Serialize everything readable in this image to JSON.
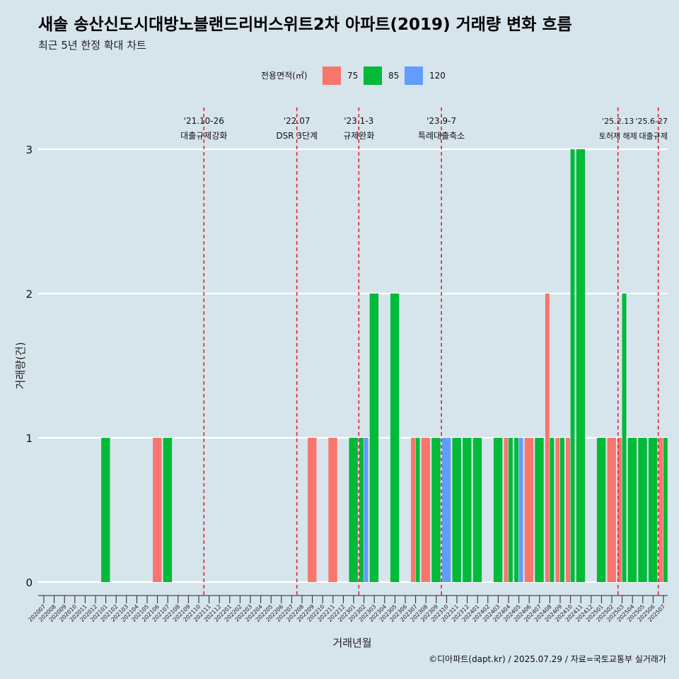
{
  "chart_data": {
    "type": "bar",
    "title": "새솔 송산신도시대방노블랜드리버스위트2차 아파트(2019) 거래량 변화 흐름",
    "subtitle": "최근 5년 한정 확대 차트",
    "xlabel": "거래년월",
    "ylabel": "거래량(건)",
    "ylim": [
      0,
      3
    ],
    "yticks": [
      "0",
      "1",
      "2",
      "3"
    ],
    "grid": true,
    "legend": {
      "title": "전용면적(㎡)",
      "position": "top",
      "entries": [
        {
          "name": "75",
          "color": "#f8766d"
        },
        {
          "name": "85",
          "color": "#00ba38"
        },
        {
          "name": "120",
          "color": "#619cff"
        }
      ]
    },
    "categories": [
      "202007",
      "202008",
      "202009",
      "202010",
      "202011",
      "202012",
      "202101",
      "202102",
      "202103",
      "202104",
      "202105",
      "202106",
      "202107",
      "202108",
      "202109",
      "202110",
      "202111",
      "202112",
      "202201",
      "202202",
      "202203",
      "202204",
      "202205",
      "202206",
      "202207",
      "202208",
      "202209",
      "202210",
      "202211",
      "202212",
      "202301",
      "202302",
      "202303",
      "202304",
      "202305",
      "202306",
      "202307",
      "202308",
      "202309",
      "202310",
      "202311",
      "202312",
      "202401",
      "202402",
      "202403",
      "202404",
      "202405",
      "202406",
      "202407",
      "202408",
      "202409",
      "202410",
      "202411",
      "202412",
      "202501",
      "202502",
      "202503",
      "202504",
      "202505",
      "202506",
      "202507"
    ],
    "series": [
      {
        "name": "75",
        "color": "#f8766d",
        "values": [
          0,
          0,
          0,
          0,
          0,
          0,
          0,
          0,
          0,
          0,
          0,
          1,
          0,
          0,
          0,
          0,
          0,
          0,
          0,
          0,
          0,
          0,
          0,
          0,
          0,
          0,
          1,
          0,
          1,
          0,
          0,
          0,
          0,
          0,
          0,
          0,
          1,
          1,
          0,
          0,
          0,
          0,
          0,
          0,
          0,
          1,
          0,
          1,
          0,
          2,
          1,
          1,
          0,
          0,
          0,
          1,
          1,
          0,
          0,
          0,
          1
        ]
      },
      {
        "name": "85",
        "color": "#00ba38",
        "values": [
          0,
          0,
          0,
          0,
          0,
          0,
          1,
          0,
          0,
          0,
          0,
          0,
          1,
          0,
          0,
          0,
          0,
          0,
          0,
          0,
          0,
          0,
          0,
          0,
          0,
          0,
          0,
          0,
          0,
          0,
          1,
          1,
          2,
          0,
          2,
          0,
          1,
          0,
          1,
          0,
          1,
          1,
          1,
          0,
          1,
          1,
          1,
          0,
          1,
          1,
          1,
          3,
          3,
          0,
          1,
          0,
          2,
          1,
          1,
          1,
          1
        ]
      },
      {
        "name": "120",
        "color": "#619cff",
        "values": [
          0,
          0,
          0,
          0,
          0,
          0,
          0,
          0,
          0,
          0,
          0,
          0,
          0,
          0,
          0,
          0,
          0,
          0,
          0,
          0,
          0,
          0,
          0,
          0,
          0,
          0,
          0,
          0,
          0,
          0,
          0,
          1,
          0,
          0,
          0,
          0,
          0,
          0,
          0,
          1,
          0,
          0,
          0,
          0,
          0,
          0,
          1,
          0,
          0,
          0,
          0,
          0,
          0,
          0,
          0,
          0,
          0,
          0,
          0,
          0,
          0
        ]
      }
    ],
    "annotations": [
      {
        "x": 15.5,
        "date": "'21.10-26",
        "text": "대출규제강화"
      },
      {
        "x": 24.5,
        "date": "'22.07",
        "text": "DSR 3단계"
      },
      {
        "x": 30.5,
        "date": "'23.1-3",
        "text": "규제완화"
      },
      {
        "x": 38.5,
        "date": "'23.9-7",
        "text": "특례대출축소"
      },
      {
        "x": 55.6,
        "date": "'25.2.13",
        "text": "토허제 해제"
      },
      {
        "x": 59.5,
        "date": "'25.6-27",
        "text": "대출규제"
      }
    ],
    "caption": "©디아파트(dapt.kr) / 2025.07.29 / 자료=국토교통부 실거래가"
  }
}
